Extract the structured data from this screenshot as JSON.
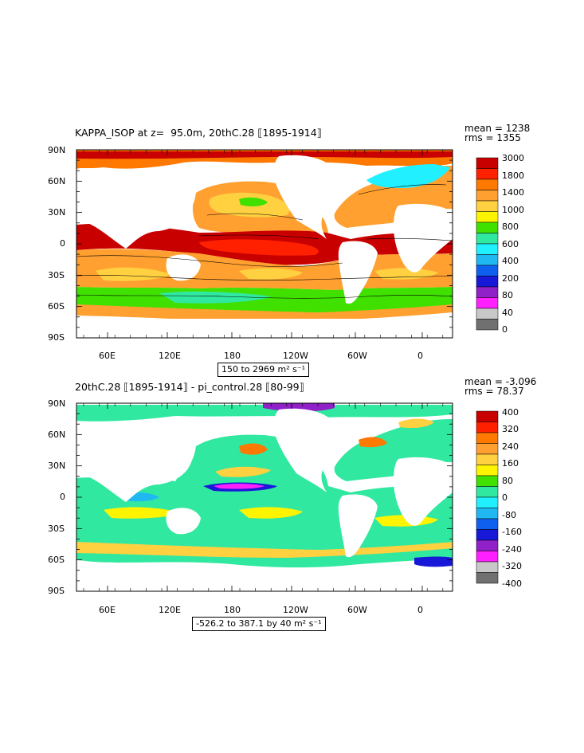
{
  "panels": [
    {
      "title": "KAPPA_ISOP at z=  95.0m, 20thC.28 ⟦1895-1914⟧",
      "mean": "mean = 1238",
      "rms": "rms = 1355",
      "range": "150 to 2969 m² s⁻¹",
      "colorbar_labels": [
        "3000",
        "1800",
        "1400",
        "1000",
        "800",
        "600",
        "400",
        "200",
        "80",
        "40",
        "0"
      ],
      "colorbar_colors": [
        "#c80000",
        "#ff2000",
        "#ff7800",
        "#ffa030",
        "#ffd040",
        "#fff400",
        "#40e000",
        "#30e8a0",
        "#20f0ff",
        "#20b8f0",
        "#1060f0",
        "#1818d8",
        "#9020c8",
        "#ff20ff",
        "#c8c8c8",
        "#707070"
      ],
      "contour_labels": [
        "1000",
        "800",
        "1400",
        "1000",
        "1000",
        "800",
        "1400",
        "800",
        "1000"
      ]
    },
    {
      "title": "20thC.28 ⟦1895-1914⟧ - pi_control.28 ⟦80-99⟧",
      "mean": "mean = -3.096",
      "rms": "rms = 78.37",
      "range": "-526.2 to 387.1 by 40 m² s⁻¹",
      "colorbar_labels": [
        "400",
        "320",
        "240",
        "160",
        "80",
        "0",
        "-80",
        "-160",
        "-240",
        "-320",
        "-400"
      ],
      "colorbar_colors": [
        "#c80000",
        "#ff2000",
        "#ff7800",
        "#ffa030",
        "#ffd040",
        "#fff400",
        "#40e000",
        "#30e8a0",
        "#20f0ff",
        "#20b8f0",
        "#1060f0",
        "#1818d8",
        "#9020c8",
        "#ff20ff",
        "#c8c8c8",
        "#707070"
      ]
    }
  ],
  "lat_labels": [
    "90N",
    "60N",
    "30N",
    "0",
    "30S",
    "60S",
    "90S"
  ],
  "lon_labels": [
    "60E",
    "120E",
    "180",
    "120W",
    "60W",
    "0"
  ]
}
